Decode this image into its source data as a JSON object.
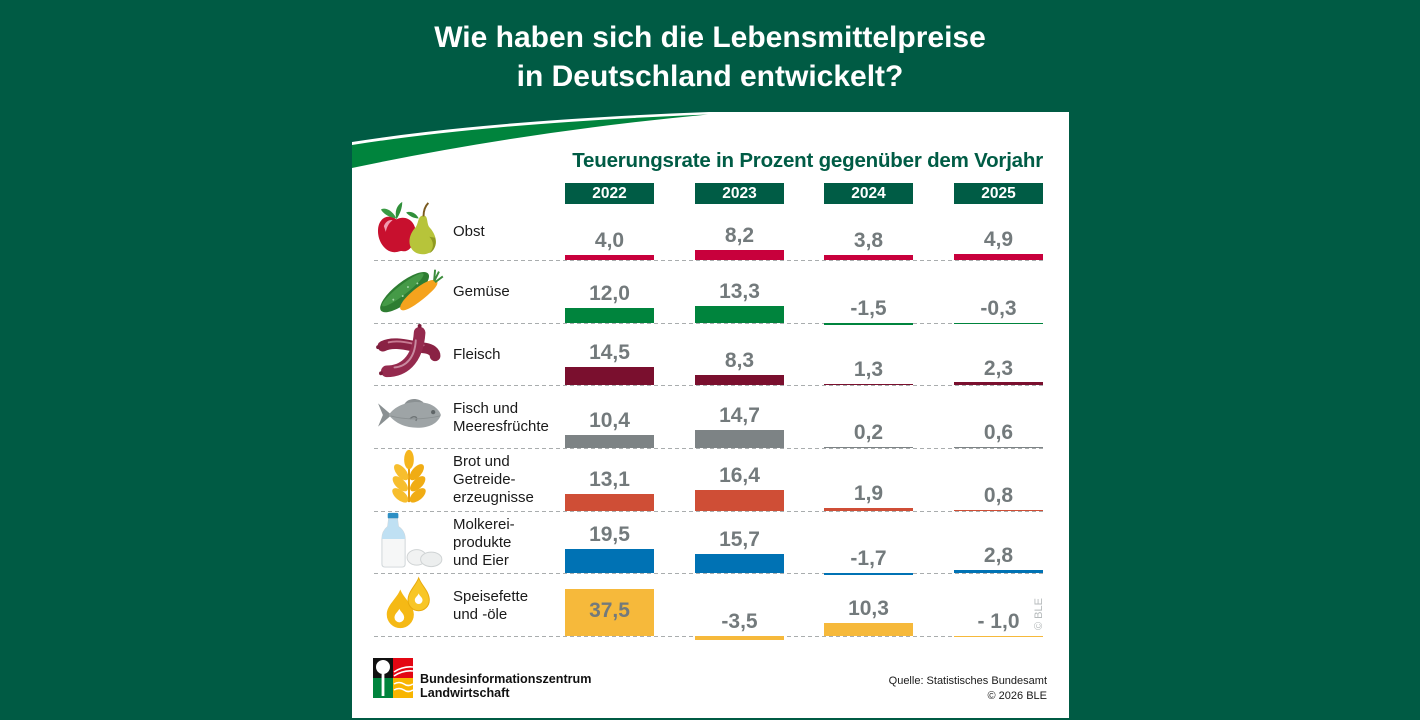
{
  "header": {
    "title_lines": [
      "Wie haben sich die Lebensmittelpreise",
      "in Deutschland entwickelt?"
    ]
  },
  "chart_data": {
    "type": "bar",
    "title": "Teuerungsrate in Prozent gegenüber dem Vorjahr",
    "xlabel": "",
    "ylabel": "",
    "categories": [
      {
        "lines": [
          "Obst"
        ],
        "icon": "fruit-icon",
        "color": "#c8003c"
      },
      {
        "lines": [
          "Gemüse"
        ],
        "icon": "vegetable-icon",
        "color": "#00843d"
      },
      {
        "lines": [
          "Fleisch"
        ],
        "icon": "sausage-icon",
        "color": "#7a0f2e"
      },
      {
        "lines": [
          "Fisch und",
          "Meeresfrüchte"
        ],
        "icon": "fish-icon",
        "color": "#7d8385"
      },
      {
        "lines": [
          "Brot und",
          "Getreide-",
          "erzeugnisse"
        ],
        "icon": "wheat-icon",
        "color": "#cf4e36"
      },
      {
        "lines": [
          "Molkerei-",
          "produkte",
          "und Eier"
        ],
        "icon": "milk-eggs-icon",
        "color": "#0072b4"
      },
      {
        "lines": [
          "Speisefette",
          "und -öle"
        ],
        "icon": "oil-drops-icon",
        "color": "#f6b93b"
      }
    ],
    "series": [
      {
        "name": "2022",
        "values": [
          4.0,
          12.0,
          14.5,
          10.4,
          13.1,
          19.5,
          37.5
        ],
        "labels": [
          "4,0",
          "12,0",
          "14,5",
          "10,4",
          "13,1",
          "19,5",
          "37,5"
        ]
      },
      {
        "name": "2023",
        "values": [
          8.2,
          13.3,
          8.3,
          14.7,
          16.4,
          15.7,
          -3.5
        ],
        "labels": [
          "8,2",
          "13,3",
          "8,3",
          "14,7",
          "16,4",
          "15,7",
          "-3,5"
        ]
      },
      {
        "name": "2024",
        "values": [
          3.8,
          -1.5,
          1.3,
          0.2,
          1.9,
          -1.7,
          10.3
        ],
        "labels": [
          "3,8",
          "-1,5",
          "1,3",
          "0,2",
          "1,9",
          "-1,7",
          "10,3"
        ]
      },
      {
        "name": "2025",
        "values": [
          4.9,
          -0.3,
          2.3,
          0.6,
          0.8,
          2.8,
          -1.0
        ],
        "labels": [
          "4,9",
          "-0,3",
          "2,3",
          "0,6",
          "0,8",
          "2,8",
          "- 1,0"
        ]
      }
    ]
  },
  "footer": {
    "org_lines": [
      "Bundesinformationszentrum",
      "Landwirtschaft"
    ],
    "source": "Quelle: Statistisches Bundesamt",
    "copyright": "© 2026 BLE",
    "watermark": "© BLE"
  },
  "colors": {
    "background": "#005b44",
    "header_box": "#005c45",
    "swoosh": "#00843d",
    "value_text": "#737a7c"
  }
}
